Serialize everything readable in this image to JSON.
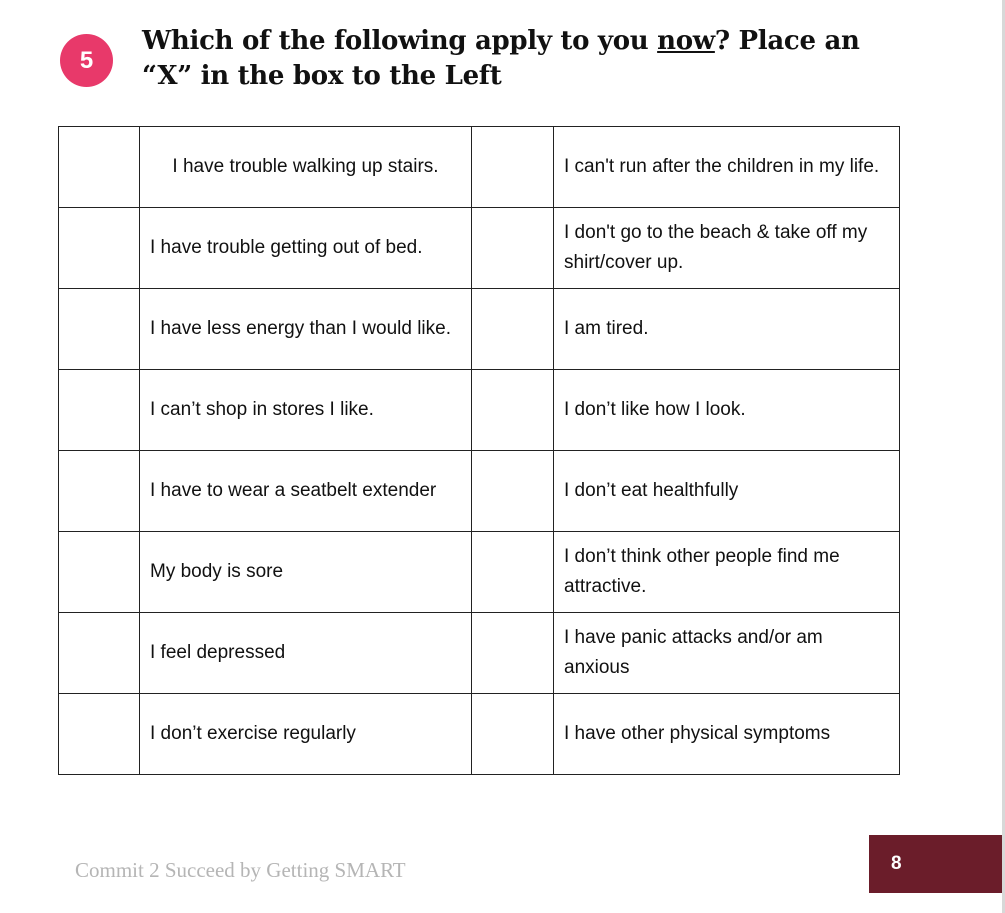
{
  "question": {
    "number": "5",
    "title_before": "Which of the following apply to you ",
    "title_emphasis": "now",
    "title_after": "? Place an",
    "title_line2": "“X” in the box to the Left"
  },
  "rows": [
    {
      "left": "I have trouble walking up stairs.",
      "right": "I can't run after the children in my life."
    },
    {
      "left": "I have trouble getting out of bed.",
      "right": "I don't go to the beach & take off my shirt/cover up."
    },
    {
      "left": "I have less energy than I would like.",
      "right": "I am tired."
    },
    {
      "left": "I can’t shop in stores I like.",
      "right": "I don’t like how I look."
    },
    {
      "left": "I have to wear a seatbelt extender",
      "right": "I don’t eat healthfully"
    },
    {
      "left": "My body is sore",
      "right": "I don’t think other people find me attractive."
    },
    {
      "left": "I feel depressed",
      "right": "I have panic attacks and/or am anxious"
    },
    {
      "left": "I don’t exercise regularly",
      "right": "I have other physical symptoms"
    }
  ],
  "footer": {
    "text": "Commit 2 Succeed by Getting SMART",
    "page": "8"
  },
  "colors": {
    "badge": "#e8396a",
    "page_box": "#6b1d2a"
  }
}
